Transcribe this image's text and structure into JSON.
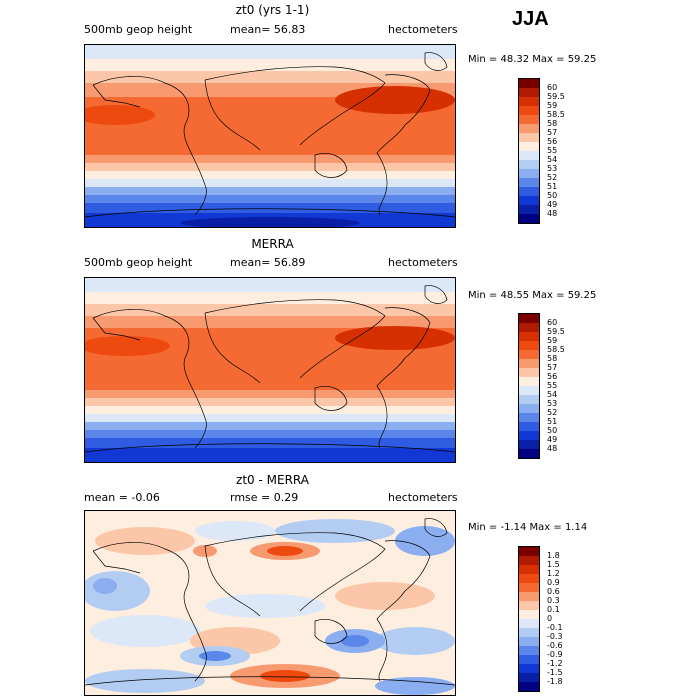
{
  "season": "JJA",
  "panels": [
    {
      "title": "zt0 (yrs 1-1)",
      "left": "500mb geop height",
      "center": "mean=  56.83",
      "right": "hectometers",
      "minmax": "Min =  48.32 Max =  59.25"
    },
    {
      "title": "MERRA",
      "left": "500mb geop height",
      "center": "mean=  56.89",
      "right": "hectometers",
      "minmax": "Min =  48.55 Max =  59.25"
    },
    {
      "title": "zt0 - MERRA",
      "left": "mean =  -0.06",
      "center": "rmse =   0.29",
      "right": "hectometers",
      "minmax": "Min =  -1.14 Max =   1.14"
    }
  ],
  "colorbar_abs": {
    "labels": [
      "60",
      "59.5",
      "59",
      "58.5",
      "58",
      "57",
      "56",
      "55",
      "54",
      "53",
      "52",
      "51",
      "50",
      "49",
      "48"
    ],
    "colors": [
      "#7a0000",
      "#b01a00",
      "#d73000",
      "#ee4a10",
      "#f56a32",
      "#f89a70",
      "#fbc7a8",
      "#fdeee0",
      "#dce8f8",
      "#b3cdf2",
      "#8aaef0",
      "#5b86ea",
      "#2f5ce0",
      "#1238d4",
      "#0a1fa8",
      "#000080"
    ]
  },
  "colorbar_diff": {
    "labels": [
      "1.8",
      "1.5",
      "1.2",
      "0.9",
      "0.6",
      "0.3",
      "0.1",
      "0",
      "-0.1",
      "-0.3",
      "-0.6",
      "-0.9",
      "-1.2",
      "-1.5",
      "-1.8"
    ],
    "colors": [
      "#7a0000",
      "#b01a00",
      "#d73000",
      "#ee4a10",
      "#f56a32",
      "#f89a70",
      "#fbc7a8",
      "#fdeee0",
      "#dce8f8",
      "#b3cdf2",
      "#8aaef0",
      "#5b86ea",
      "#2f5ce0",
      "#1238d4",
      "#0a1fa8",
      "#000080"
    ]
  }
}
